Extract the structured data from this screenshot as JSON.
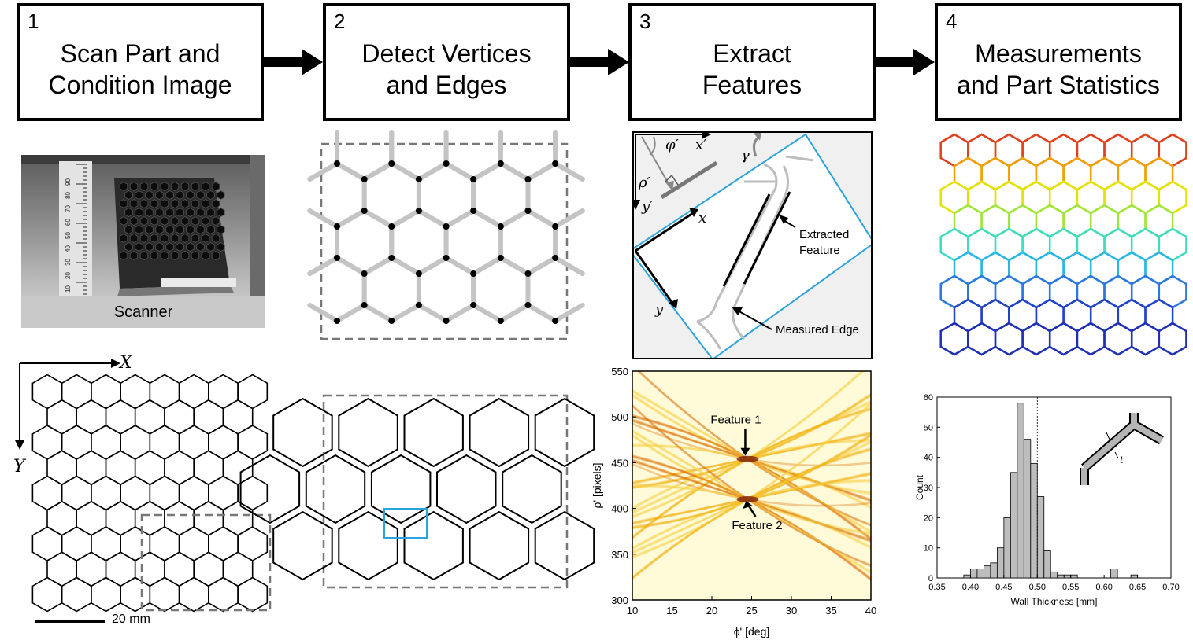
{
  "steps": [
    {
      "number": "1",
      "title": "Scan Part and\nCondition Image"
    },
    {
      "number": "2",
      "title": "Detect Vertices\nand Edges"
    },
    {
      "number": "3",
      "title": "Extract\nFeatures"
    },
    {
      "number": "4",
      "title": "Measurements\nand Part Statistics"
    }
  ],
  "scanner_photo": {
    "label": "Scanner",
    "ruler_marks": [
      "10",
      "20",
      "30",
      "40",
      "50",
      "60",
      "70",
      "80",
      "90"
    ]
  },
  "binary_image": {
    "x_axis_label": "X",
    "y_axis_label": "Y",
    "scale_bar_label": "20 mm"
  },
  "feature_schematic": {
    "labels": {
      "phi_prime": "φ′",
      "x_prime": "x′",
      "rho_prime": "ρ′",
      "y_prime": "y′",
      "gamma": "γ",
      "x": "x",
      "y": "y",
      "extracted_feature": "Extracted\nFeature",
      "measured_edge": "Measured Edge"
    }
  },
  "colors": {
    "accent": "#29a3dc",
    "dashed": "#777777",
    "gray_edge": "#bbbbbb"
  },
  "chart_data": [
    {
      "type": "heatmap",
      "title": "",
      "xlabel": "ϕ' [deg]",
      "ylabel": "ρ' [pixels]",
      "xlim": [
        10,
        40
      ],
      "ylim": [
        300,
        550
      ],
      "xticks": [
        10,
        15,
        20,
        25,
        30,
        35,
        40
      ],
      "yticks": [
        300,
        350,
        400,
        450,
        500,
        550
      ],
      "annotations": [
        {
          "text": "Feature 1",
          "x": 24.5,
          "y": 454
        },
        {
          "text": "Feature 2",
          "x": 24.5,
          "y": 410
        }
      ]
    },
    {
      "type": "bar",
      "title": "",
      "xlabel": "Wall Thickness [mm]",
      "ylabel": "Count",
      "xlim": [
        0.35,
        0.7
      ],
      "ylim": [
        0,
        60
      ],
      "xticks": [
        "0.35",
        "0.40",
        "0.45",
        "0.50",
        "0.55",
        "0.60",
        "0.65",
        "0.70"
      ],
      "yticks": [
        0,
        10,
        20,
        30,
        40,
        50,
        60
      ],
      "bin_width": 0.01,
      "bin_starts": [
        0.39,
        0.4,
        0.41,
        0.42,
        0.43,
        0.44,
        0.45,
        0.46,
        0.47,
        0.48,
        0.49,
        0.5,
        0.51,
        0.52,
        0.53,
        0.54,
        0.55,
        0.61,
        0.64
      ],
      "counts": [
        1,
        3,
        3,
        4,
        5,
        10,
        20,
        35,
        58,
        46,
        38,
        27,
        9,
        2,
        1,
        1,
        1,
        3,
        1
      ],
      "reference_line_x": 0.5,
      "inset_label": "t"
    }
  ]
}
